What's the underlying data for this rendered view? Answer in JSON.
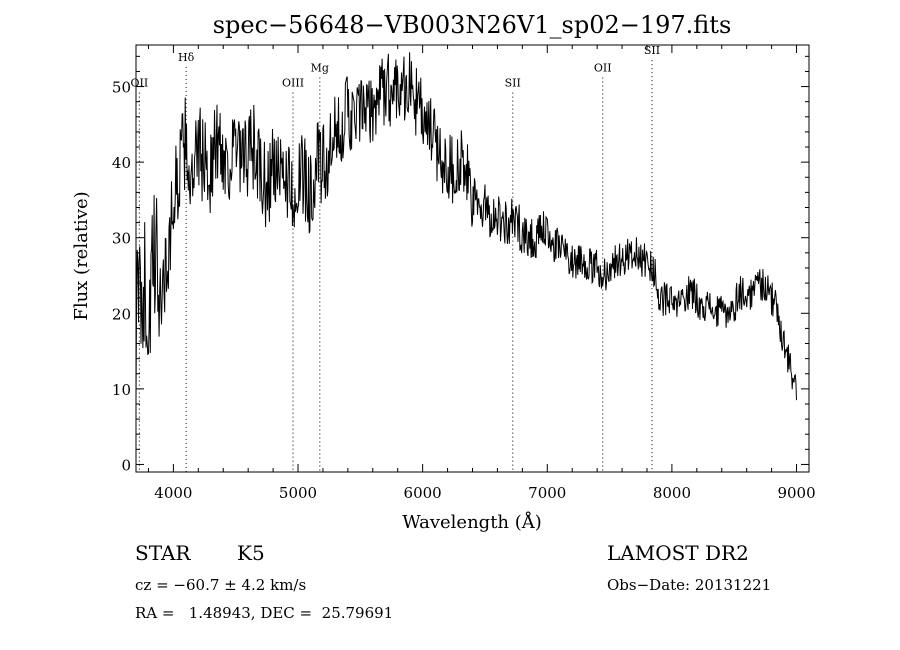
{
  "chart_data": {
    "type": "line",
    "title": "spec−56648−VB003N26V1_sp02−197.fits",
    "xlabel": "Wavelength (Å)",
    "ylabel": "Flux (relative)",
    "xlim": [
      3700,
      9100
    ],
    "ylim": [
      -1,
      55.5
    ],
    "xticks": [
      4000,
      5000,
      6000,
      7000,
      8000,
      9000
    ],
    "yticks": [
      0,
      10,
      20,
      30,
      40,
      50
    ],
    "grid": false,
    "series": [
      {
        "x": [
          3700,
          3750,
          3800,
          3850,
          3900,
          3950,
          4000,
          4050,
          4100,
          4150,
          4200,
          4250,
          4300,
          4350,
          4400,
          4450,
          4500,
          4550,
          4600,
          4650,
          4700,
          4750,
          4800,
          4850,
          4900,
          4950,
          5000,
          5050,
          5100,
          5150,
          5200,
          5250,
          5300,
          5350,
          5400,
          5450,
          5500,
          5550,
          5600,
          5650,
          5700,
          5750,
          5800,
          5850,
          5900,
          5950,
          6000,
          6050,
          6100,
          6150,
          6200,
          6250,
          6300,
          6350,
          6400,
          6450,
          6500,
          6550,
          6600,
          6650,
          6700,
          6750,
          6800,
          6850,
          6900,
          6950,
          7000,
          7050,
          7100,
          7150,
          7200,
          7250,
          7300,
          7350,
          7400,
          7450,
          7500,
          7550,
          7600,
          7650,
          7700,
          7750,
          7800,
          7850,
          7900,
          7950,
          8000,
          8050,
          8100,
          8150,
          8200,
          8250,
          8300,
          8350,
          8400,
          8450,
          8500,
          8550,
          8600,
          8650,
          8700,
          8750,
          8800,
          8850,
          8900,
          8950,
          9000
        ],
        "y": [
          18,
          25,
          20,
          27,
          24,
          26,
          35,
          39,
          43,
          36,
          42,
          40,
          39,
          43,
          41,
          40,
          42,
          39,
          41,
          42,
          38,
          36,
          40,
          37,
          39,
          36,
          37,
          38,
          36,
          40,
          39,
          40,
          43,
          45,
          47,
          45,
          47,
          46,
          47,
          49,
          50,
          49,
          51,
          50,
          50,
          48,
          46,
          44,
          43,
          40,
          40,
          39,
          40,
          38,
          35,
          34,
          34,
          33,
          33,
          32,
          32,
          32,
          31,
          30,
          30,
          30,
          31,
          29,
          29,
          28,
          27,
          27,
          27,
          26,
          26,
          25,
          26,
          27,
          27,
          28,
          28,
          27,
          27,
          26,
          22,
          22,
          21,
          21,
          22,
          23,
          22,
          21,
          21,
          20,
          20,
          20,
          21,
          23,
          22,
          23,
          24,
          24,
          22,
          20,
          16,
          13,
          9
        ]
      }
    ],
    "annotations": [
      {
        "label": "OII",
        "x": 3727,
        "y": 50
      },
      {
        "label": "Hδ",
        "x": 4102,
        "y": 53.4
      },
      {
        "label": "OIII",
        "x": 4960,
        "y": 50
      },
      {
        "label": "Mg",
        "x": 5175,
        "y": 52
      },
      {
        "label": "SII",
        "x": 6723,
        "y": 50
      },
      {
        "label": "OII",
        "x": 7445,
        "y": 52
      },
      {
        "label": "SII",
        "x": 7840,
        "y": 54.3
      }
    ]
  },
  "info": {
    "object_class": "STAR",
    "subclass": "K5",
    "velocity": "cz = −60.7 ± 4.2 km/s",
    "coords": "RA =   1.48943, DEC =  25.79691",
    "survey": "LAMOST DR2",
    "obs_date": "Obs−Date: 20131221"
  }
}
